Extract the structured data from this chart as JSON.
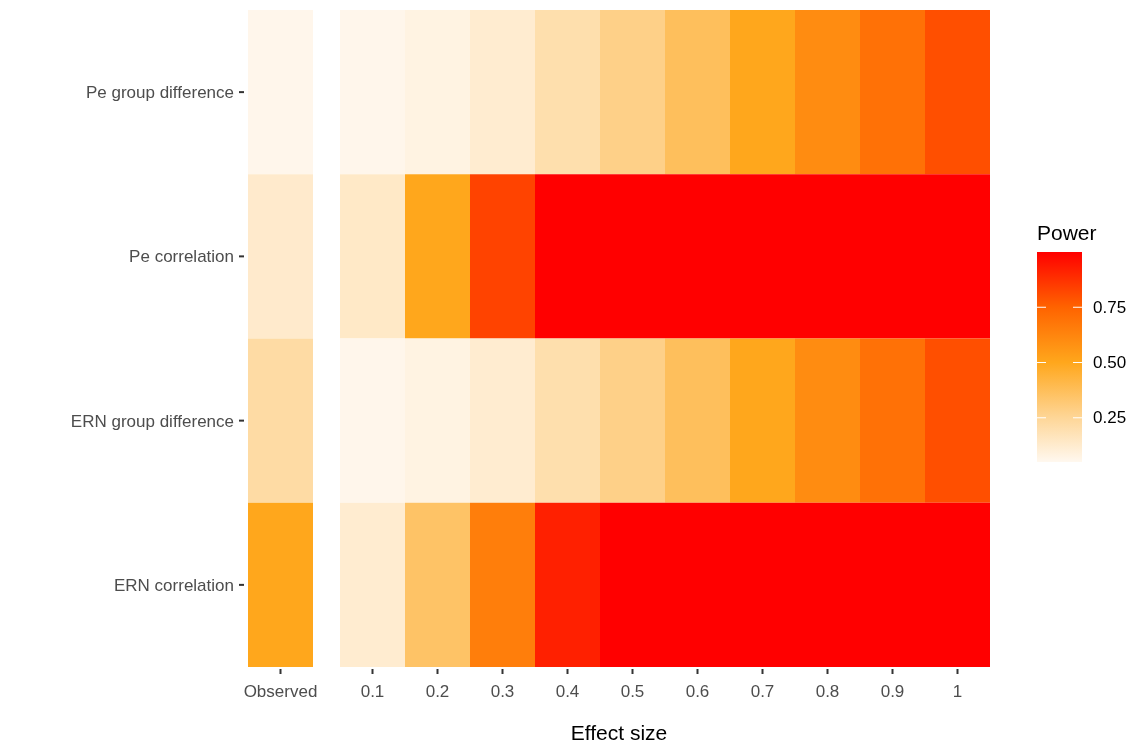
{
  "chart_data": {
    "type": "heatmap",
    "categories": [
      "Observed",
      "0.1",
      "0.2",
      "0.3",
      "0.4",
      "0.5",
      "0.6",
      "0.7",
      "0.8",
      "0.9",
      "1"
    ],
    "y_categories": [
      "Pe group difference",
      "Pe correlation",
      "ERN group difference",
      "ERN correlation"
    ],
    "cells": [
      [
        0.06,
        0.06,
        0.08,
        0.12,
        0.2,
        0.28,
        0.37,
        0.5,
        0.6,
        0.7,
        0.8
      ],
      [
        0.13,
        0.14,
        0.5,
        0.83,
        1,
        1,
        1,
        1,
        1,
        1,
        1
      ],
      [
        0.22,
        0.06,
        0.08,
        0.12,
        0.2,
        0.28,
        0.37,
        0.5,
        0.6,
        0.7,
        0.8
      ],
      [
        0.5,
        0.12,
        0.35,
        0.65,
        0.92,
        1,
        1,
        1,
        1,
        1,
        1
      ]
    ],
    "xlabel": "Effect size",
    "clabel": "Power",
    "clim": [
      0.05,
      1
    ],
    "cticks": [
      0.25,
      {
        "value": 0.5,
        "label": "0.50"
      },
      0.75
    ]
  }
}
